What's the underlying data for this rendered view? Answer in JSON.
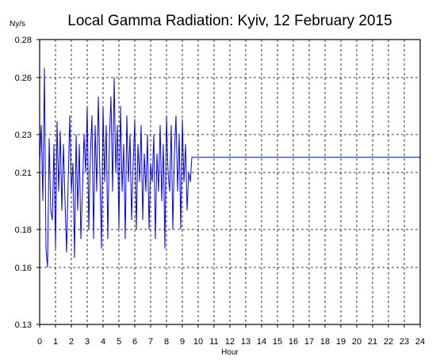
{
  "chart_data": {
    "type": "line",
    "title": "Local Gamma Radiation: Kyiv, 12 February 2015",
    "xlabel": "Hour",
    "ylabel": "Ny/s",
    "xlim": [
      0,
      24
    ],
    "ylim": [
      0.13,
      0.28
    ],
    "x_ticks": [
      "0",
      "1",
      "2",
      "3",
      "4",
      "5",
      "6",
      "7",
      "8",
      "9",
      "10",
      "11",
      "12",
      "13",
      "14",
      "15",
      "16",
      "17",
      "18",
      "19",
      "20",
      "21",
      "22",
      "23",
      "24"
    ],
    "y_ticks": [
      "0.13",
      "0.16",
      "0.18",
      "0.21",
      "0.23",
      "0.26",
      "0.28"
    ],
    "y_tick_values": [
      0.13,
      0.16,
      0.18,
      0.21,
      0.23,
      0.26,
      0.28
    ],
    "grid": true,
    "line_color": "#0000ff",
    "series": [
      {
        "x": [
          0.0,
          0.1,
          0.2,
          0.3,
          0.4,
          0.5,
          0.6,
          0.7,
          0.8,
          0.9,
          1.0,
          1.1,
          1.2,
          1.3,
          1.4,
          1.5,
          1.6,
          1.7,
          1.8,
          1.9,
          2.0,
          2.1,
          2.2,
          2.3,
          2.4,
          2.5,
          2.6,
          2.7,
          2.8,
          2.9,
          3.0,
          3.1,
          3.2,
          3.3,
          3.4,
          3.5,
          3.6,
          3.7,
          3.8,
          3.9,
          4.0,
          4.1,
          4.2,
          4.3,
          4.4,
          4.5,
          4.6,
          4.7,
          4.8,
          4.9,
          5.0,
          5.1,
          5.2,
          5.3,
          5.4,
          5.5,
          5.6,
          5.7,
          5.8,
          5.9,
          6.0,
          6.1,
          6.2,
          6.3,
          6.4,
          6.5,
          6.6,
          6.7,
          6.8,
          6.9,
          7.0,
          7.1,
          7.2,
          7.3,
          7.4,
          7.5,
          7.6,
          7.7,
          7.8,
          7.9,
          8.0,
          8.1,
          8.2,
          8.3,
          8.4,
          8.5,
          8.6,
          8.7,
          8.8,
          8.9,
          9.0,
          9.1,
          9.2,
          9.3,
          9.4,
          9.5,
          9.6,
          9.7,
          9.8,
          10.0,
          24.0
        ],
        "values": [
          0.215,
          0.235,
          0.195,
          0.265,
          0.17,
          0.16,
          0.228,
          0.19,
          0.185,
          0.225,
          0.17,
          0.237,
          0.2,
          0.232,
          0.19,
          0.225,
          0.195,
          0.168,
          0.205,
          0.24,
          0.2,
          0.215,
          0.165,
          0.23,
          0.19,
          0.225,
          0.175,
          0.2,
          0.23,
          0.21,
          0.245,
          0.18,
          0.22,
          0.24,
          0.175,
          0.235,
          0.2,
          0.25,
          0.21,
          0.17,
          0.245,
          0.205,
          0.235,
          0.175,
          0.228,
          0.25,
          0.2,
          0.26,
          0.21,
          0.235,
          0.18,
          0.245,
          0.2,
          0.225,
          0.175,
          0.24,
          0.205,
          0.23,
          0.185,
          0.215,
          0.238,
          0.18,
          0.225,
          0.205,
          0.235,
          0.185,
          0.22,
          0.2,
          0.23,
          0.18,
          0.215,
          0.205,
          0.23,
          0.175,
          0.22,
          0.2,
          0.235,
          0.195,
          0.225,
          0.17,
          0.24,
          0.21,
          0.2,
          0.235,
          0.18,
          0.22,
          0.24,
          0.2,
          0.23,
          0.18,
          0.238,
          0.205,
          0.225,
          0.19,
          0.21,
          0.205,
          0.218,
          0.218,
          0.218,
          0.218,
          0.218
        ]
      }
    ]
  }
}
